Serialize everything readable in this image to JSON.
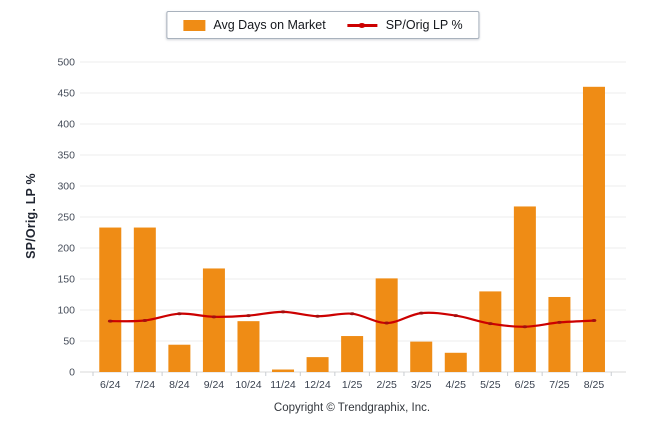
{
  "legend": {
    "items": [
      {
        "label": "Avg Days on Market",
        "swatch": "bar",
        "color": "#EF8C15"
      },
      {
        "label": "SP/Orig LP %",
        "swatch": "line",
        "color": "#CC0000"
      }
    ]
  },
  "footer": {
    "copyright": "Copyright © Trendgraphix, Inc."
  },
  "chart_data": {
    "type": "combo",
    "categories": [
      "6/24",
      "7/24",
      "8/24",
      "9/24",
      "10/24",
      "11/24",
      "12/24",
      "1/25",
      "2/25",
      "3/25",
      "4/25",
      "5/25",
      "6/25",
      "7/25",
      "8/25"
    ],
    "series": [
      {
        "name": "Avg Days on Market",
        "type": "bar",
        "color": "#EF8C15",
        "values": [
          233,
          233,
          44,
          167,
          82,
          4,
          24,
          58,
          151,
          49,
          31,
          130,
          267,
          121,
          460
        ]
      },
      {
        "name": "SP/Orig LP %",
        "type": "line",
        "color": "#CC0000",
        "marker_color": "#A50F0F",
        "values": [
          82,
          83,
          94,
          89,
          91,
          97,
          90,
          94,
          79,
          95,
          91,
          78,
          73,
          80,
          83
        ]
      }
    ],
    "title": "",
    "xlabel": "",
    "ylabel": "SP/Orig. LP %",
    "ylim": [
      0,
      500
    ],
    "ytick_step": 50,
    "grid": true,
    "grid_color": "#ededed",
    "axis_color": "#d8d8d8",
    "tick_label_color": "#454c59",
    "legend_position": "top-center"
  }
}
